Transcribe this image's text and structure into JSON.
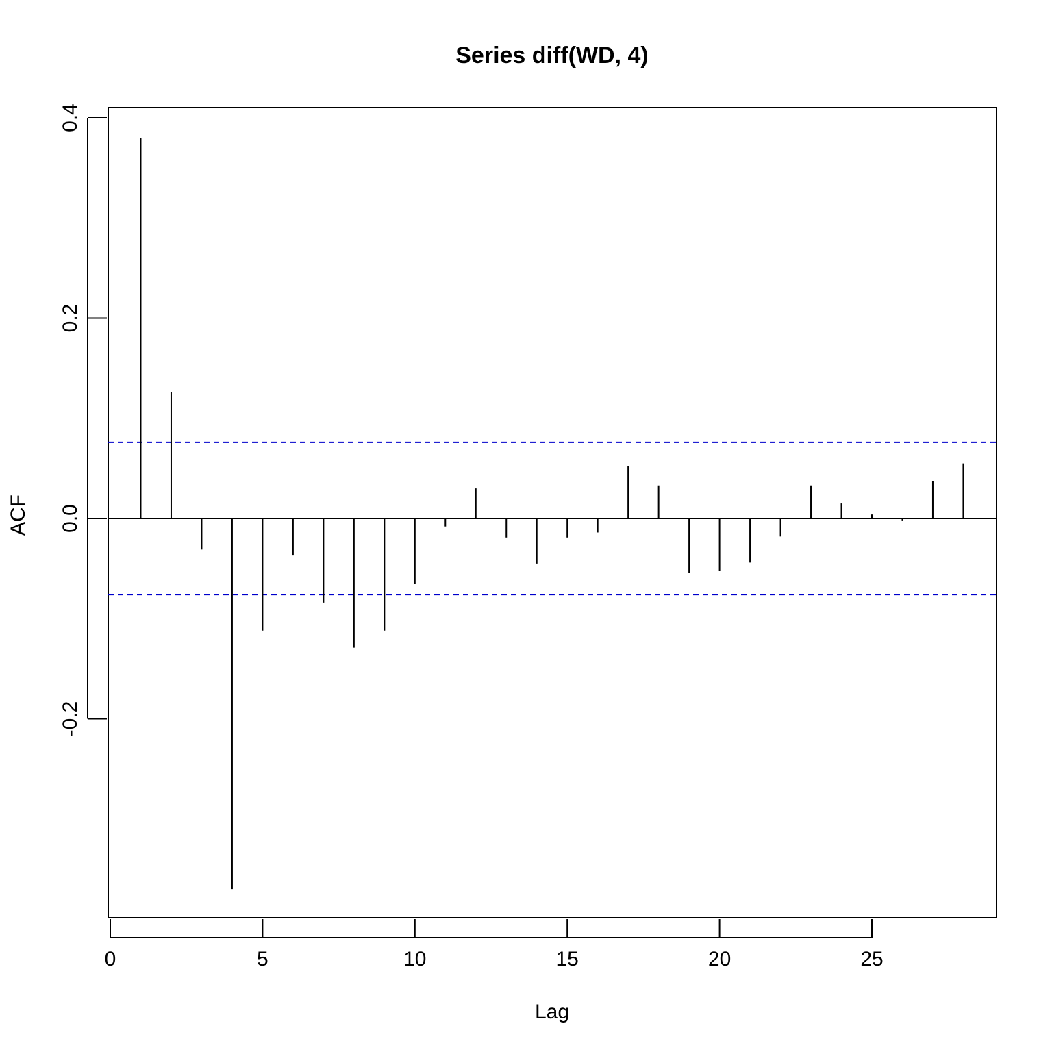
{
  "chart_data": {
    "type": "bar",
    "title": "Series diff(WD, 4)",
    "xlabel": "Lag",
    "ylabel": "ACF",
    "xlim": [
      0,
      29
    ],
    "ylim": [
      -0.4,
      0.41
    ],
    "x_ticks": [
      0,
      5,
      10,
      15,
      20,
      25
    ],
    "x_tick_labels": [
      "0",
      "5",
      "10",
      "15",
      "20",
      "25"
    ],
    "y_ticks": [
      -0.2,
      0.0,
      0.2,
      0.4
    ],
    "y_tick_labels": [
      "-0.2",
      "0.0",
      "0.2",
      "0.4"
    ],
    "confidence_band": {
      "upper": 0.076,
      "lower": -0.076,
      "color": "#0000cc",
      "style": "dashed"
    },
    "zero_line": true,
    "grid": false,
    "lags": [
      1,
      2,
      3,
      4,
      5,
      6,
      7,
      8,
      9,
      10,
      11,
      12,
      13,
      14,
      15,
      16,
      17,
      18,
      19,
      20,
      21,
      22,
      23,
      24,
      25,
      26,
      27,
      28
    ],
    "values": [
      0.38,
      0.126,
      -0.031,
      -0.37,
      -0.112,
      -0.037,
      -0.084,
      -0.129,
      -0.112,
      -0.065,
      -0.008,
      0.03,
      -0.019,
      -0.045,
      -0.019,
      -0.014,
      0.052,
      0.033,
      -0.054,
      -0.052,
      -0.044,
      -0.018,
      0.033,
      0.015,
      0.004,
      -0.002,
      0.037,
      0.055
    ]
  }
}
